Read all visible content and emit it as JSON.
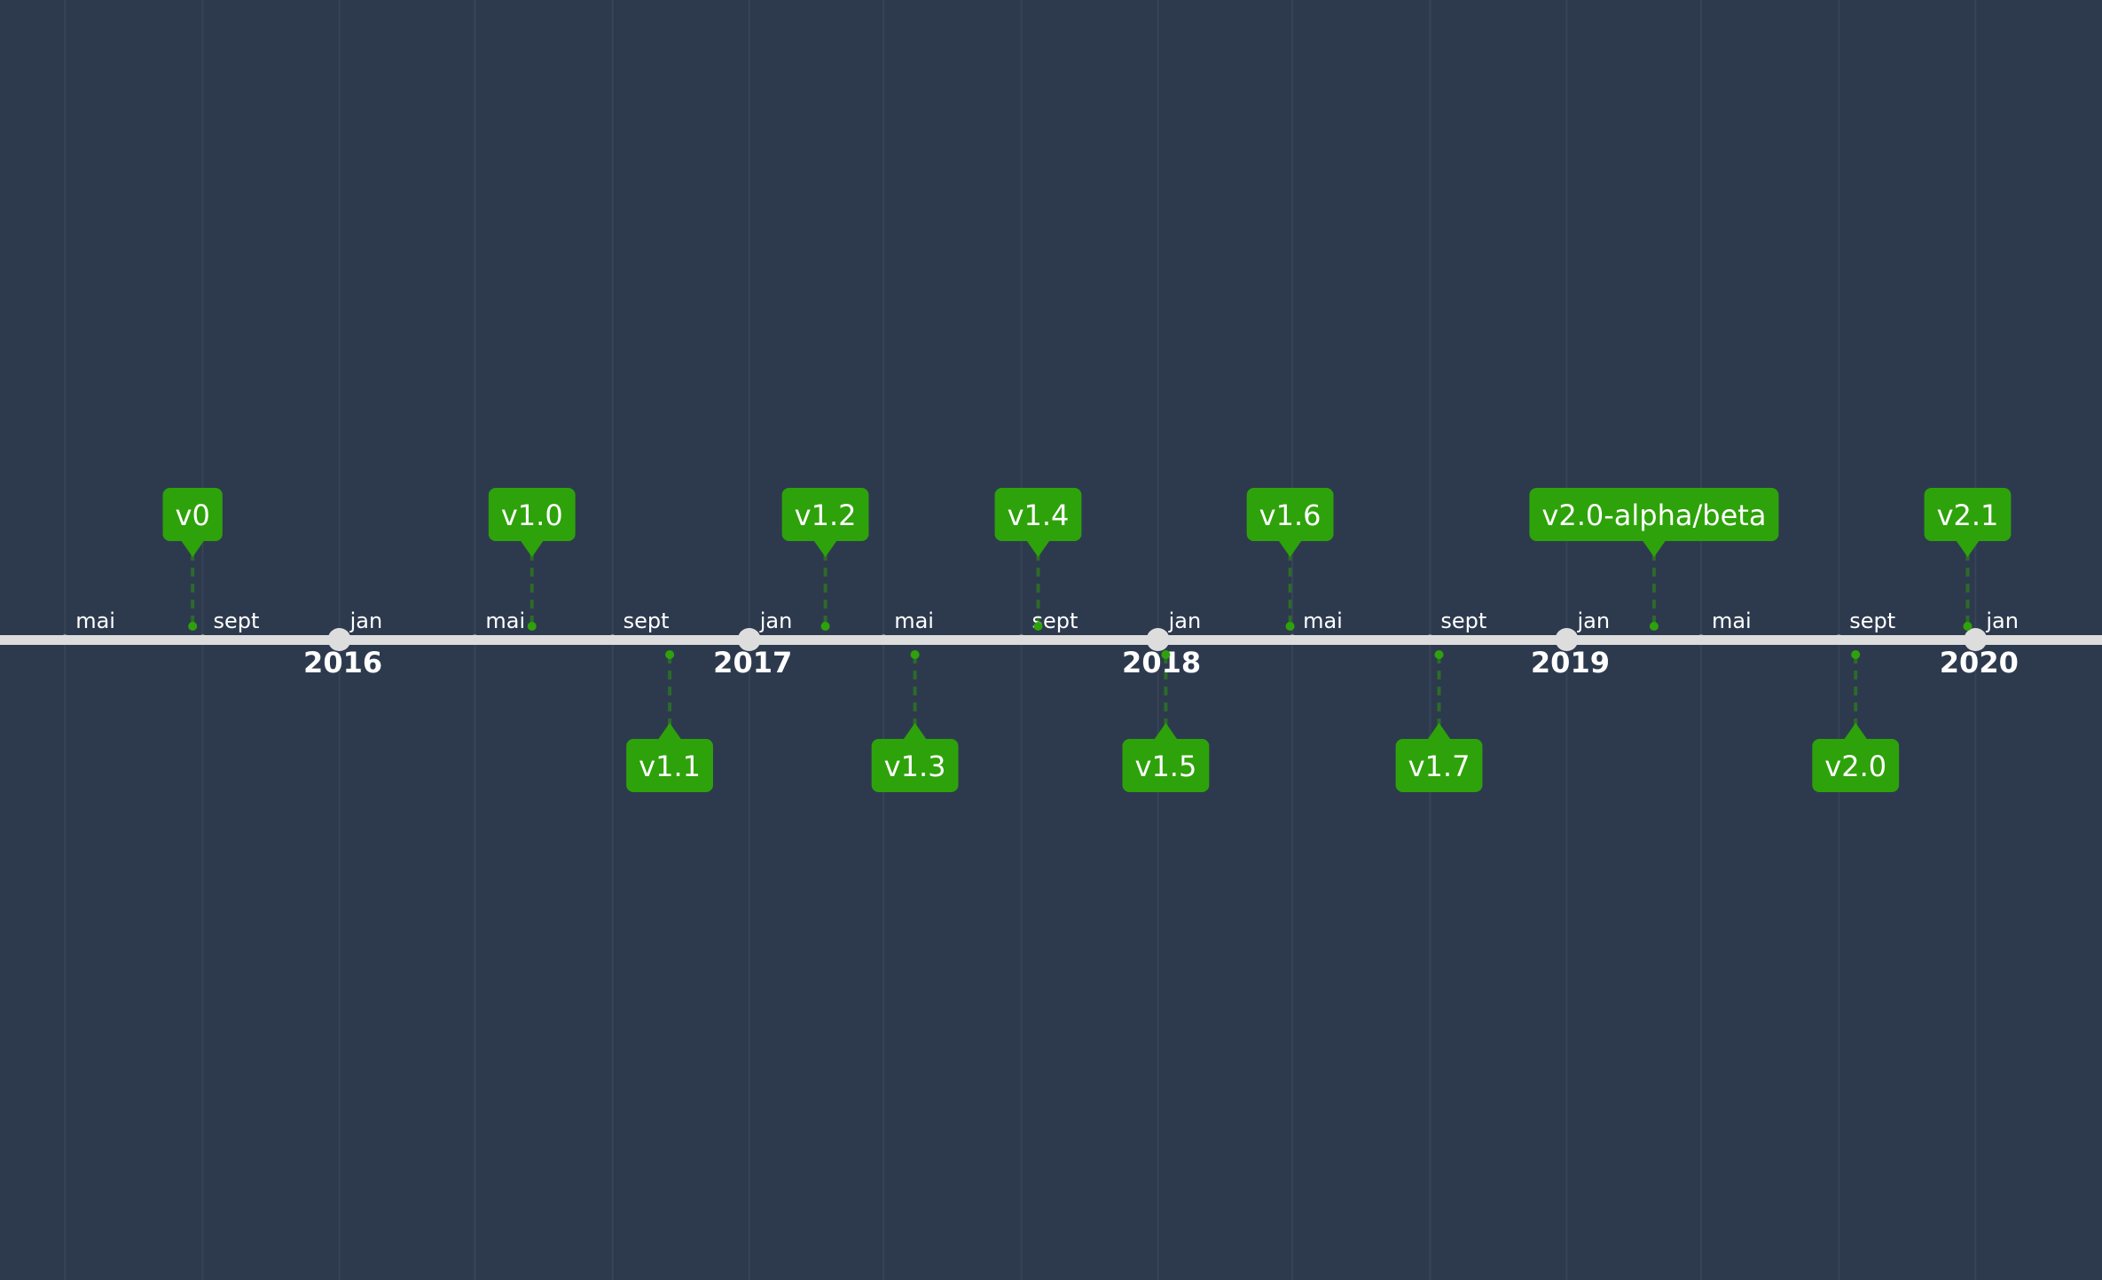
{
  "colors": {
    "background": "#2d3a4e",
    "gridline": "#364456",
    "axis": "#dddddd",
    "release": "#2ea20a",
    "release_connector": "#2d6a2a",
    "text": "#ffffff"
  },
  "timeline": {
    "view_start": "2015-03-04",
    "view_end": "2020-04-23",
    "ticks": [
      {
        "date": "2015-05-01",
        "label": "mai",
        "type": "month"
      },
      {
        "date": "2015-09-01",
        "label": "sept",
        "type": "month"
      },
      {
        "date": "2016-01-01",
        "label": "jan",
        "type": "month"
      },
      {
        "date": "2016-05-01",
        "label": "mai",
        "type": "month"
      },
      {
        "date": "2016-09-01",
        "label": "sept",
        "type": "month"
      },
      {
        "date": "2017-01-01",
        "label": "jan",
        "type": "month"
      },
      {
        "date": "2017-05-01",
        "label": "mai",
        "type": "month"
      },
      {
        "date": "2017-09-01",
        "label": "sept",
        "type": "month"
      },
      {
        "date": "2018-01-01",
        "label": "jan",
        "type": "month"
      },
      {
        "date": "2018-05-01",
        "label": "mai",
        "type": "month"
      },
      {
        "date": "2018-09-01",
        "label": "sept",
        "type": "month"
      },
      {
        "date": "2019-01-01",
        "label": "jan",
        "type": "month"
      },
      {
        "date": "2019-05-01",
        "label": "mai",
        "type": "month"
      },
      {
        "date": "2019-09-01",
        "label": "sept",
        "type": "month"
      },
      {
        "date": "2020-01-01",
        "label": "jan",
        "type": "month"
      }
    ],
    "years": [
      {
        "date": "2016-01-01",
        "label": "2016"
      },
      {
        "date": "2017-01-01",
        "label": "2017"
      },
      {
        "date": "2018-01-01",
        "label": "2018"
      },
      {
        "date": "2019-01-01",
        "label": "2019"
      },
      {
        "date": "2020-01-01",
        "label": "2020"
      }
    ],
    "releases": [
      {
        "label": "v0",
        "date": "2015-08-23",
        "position": "above"
      },
      {
        "label": "v1.0",
        "date": "2016-06-21",
        "position": "above"
      },
      {
        "label": "v1.1",
        "date": "2016-10-22",
        "position": "below"
      },
      {
        "label": "v1.2",
        "date": "2017-03-10",
        "position": "above"
      },
      {
        "label": "v1.3",
        "date": "2017-05-29",
        "position": "below"
      },
      {
        "label": "v1.4",
        "date": "2017-09-16",
        "position": "above"
      },
      {
        "label": "v1.5",
        "date": "2018-01-08",
        "position": "below"
      },
      {
        "label": "v1.6",
        "date": "2018-04-29",
        "position": "above"
      },
      {
        "label": "v1.7",
        "date": "2018-09-09",
        "position": "below"
      },
      {
        "label": "v2.0-alpha/beta",
        "date": "2019-03-20",
        "position": "above"
      },
      {
        "label": "v2.0",
        "date": "2019-09-16",
        "position": "below"
      },
      {
        "label": "v2.1",
        "date": "2019-12-25",
        "position": "above"
      }
    ]
  }
}
